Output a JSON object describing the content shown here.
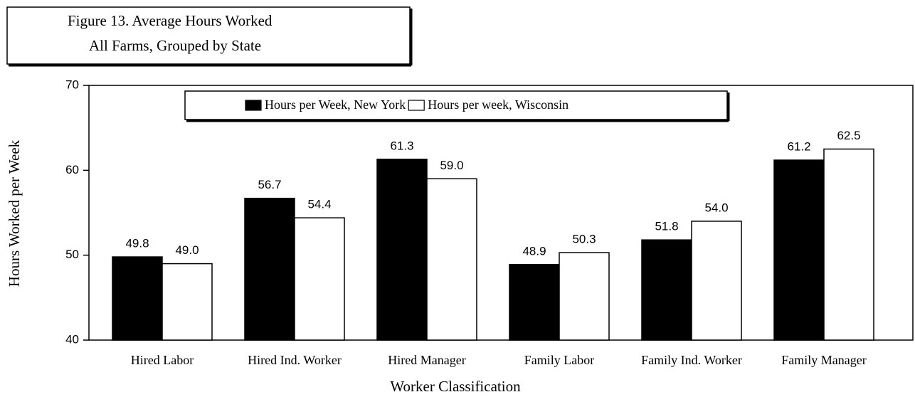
{
  "chart_data": {
    "type": "bar",
    "title": "Figure 13. Average Hours Worked",
    "subtitle": "All Farms, Grouped by State",
    "x_label": "Worker Classification",
    "y_label": "Hours Worked per Week",
    "categories": [
      "Hired Labor",
      "Hired Ind.  Worker",
      "Hired Manager",
      "Family Labor",
      "Family Ind. Worker",
      "Family Manager"
    ],
    "series": [
      {
        "name": "Hours per Week, New York",
        "color": "#000000",
        "values": [
          49.8,
          56.7,
          61.3,
          48.9,
          51.8,
          61.2
        ],
        "value_labels": [
          "49.8",
          "56.7",
          "61.3",
          "48.9",
          "51.8",
          "61.2"
        ]
      },
      {
        "name": "Hours per week, Wisconsin",
        "color": "#ffffff",
        "values": [
          49.0,
          54.4,
          59.0,
          50.3,
          54.0,
          62.5
        ],
        "value_labels": [
          "49.0",
          "54.4",
          "59.0",
          "50.3",
          "54.0",
          "62.5"
        ]
      }
    ],
    "ylim": [
      40,
      70
    ],
    "yticks": [
      40,
      50,
      60,
      70
    ],
    "grid": false,
    "legend": "top"
  }
}
